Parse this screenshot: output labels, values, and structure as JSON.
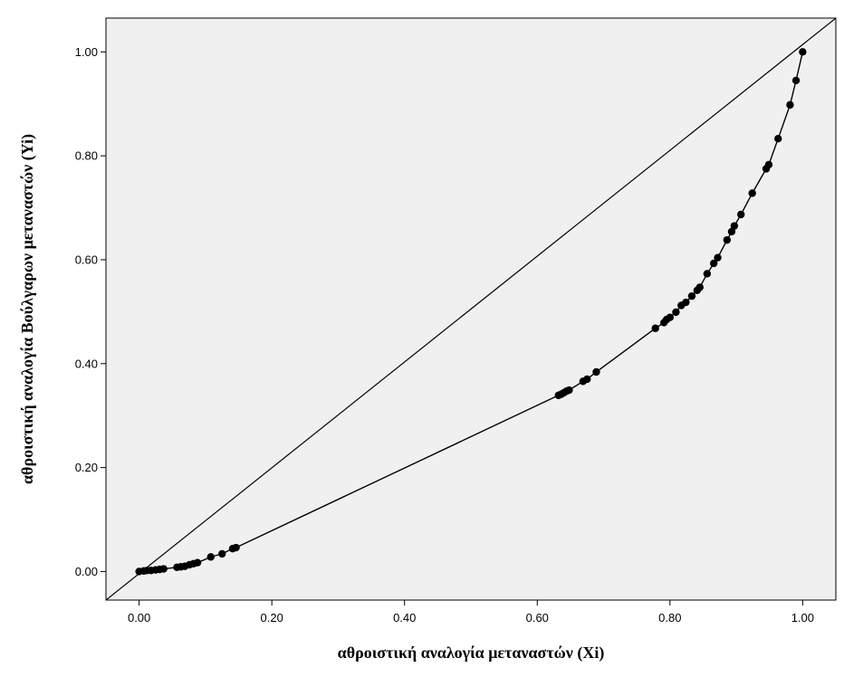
{
  "chart_data": {
    "type": "line",
    "xlabel": "αθροιστική αναλογία μεταναστών (Xi)",
    "ylabel": "αθροιστική αναλογία Βούλγαρων μεταναστών (Yi)",
    "xlim": [
      -0.05,
      1.05
    ],
    "ylim": [
      -0.055,
      1.065
    ],
    "x_ticks": [
      "0.00",
      "0.20",
      "0.40",
      "0.60",
      "0.80",
      "1.00"
    ],
    "y_ticks": [
      "0.00",
      "0.20",
      "0.40",
      "0.60",
      "0.80",
      "1.00"
    ],
    "background": "#f0f0f0",
    "line_color": "#000000",
    "reference_line": {
      "from": [
        -0.05,
        -0.055
      ],
      "to": [
        1.05,
        1.065
      ]
    },
    "series": [
      {
        "points": [
          [
            0.0,
            0.0
          ],
          [
            0.007,
            0.001
          ],
          [
            0.012,
            0.002
          ],
          [
            0.018,
            0.002
          ],
          [
            0.025,
            0.003
          ],
          [
            0.031,
            0.004
          ],
          [
            0.037,
            0.005
          ],
          [
            0.057,
            0.008
          ],
          [
            0.063,
            0.009
          ],
          [
            0.069,
            0.01
          ],
          [
            0.076,
            0.013
          ],
          [
            0.082,
            0.015
          ],
          [
            0.088,
            0.017
          ],
          [
            0.108,
            0.028
          ],
          [
            0.125,
            0.034
          ],
          [
            0.141,
            0.044
          ],
          [
            0.146,
            0.046
          ],
          [
            0.632,
            0.339
          ],
          [
            0.636,
            0.341
          ],
          [
            0.64,
            0.344
          ],
          [
            0.644,
            0.347
          ],
          [
            0.648,
            0.349
          ],
          [
            0.669,
            0.366
          ],
          [
            0.675,
            0.37
          ],
          [
            0.689,
            0.384
          ],
          [
            0.778,
            0.468
          ],
          [
            0.791,
            0.479
          ],
          [
            0.795,
            0.485
          ],
          [
            0.8,
            0.489
          ],
          [
            0.809,
            0.499
          ],
          [
            0.817,
            0.512
          ],
          [
            0.824,
            0.518
          ],
          [
            0.833,
            0.53
          ],
          [
            0.841,
            0.541
          ],
          [
            0.845,
            0.547
          ],
          [
            0.856,
            0.573
          ],
          [
            0.866,
            0.593
          ],
          [
            0.872,
            0.604
          ],
          [
            0.886,
            0.638
          ],
          [
            0.893,
            0.654
          ],
          [
            0.897,
            0.665
          ],
          [
            0.907,
            0.687
          ],
          [
            0.924,
            0.728
          ],
          [
            0.945,
            0.775
          ],
          [
            0.949,
            0.783
          ],
          [
            0.963,
            0.833
          ],
          [
            0.981,
            0.898
          ],
          [
            0.99,
            0.945
          ],
          [
            1.0,
            1.0
          ]
        ]
      }
    ]
  }
}
